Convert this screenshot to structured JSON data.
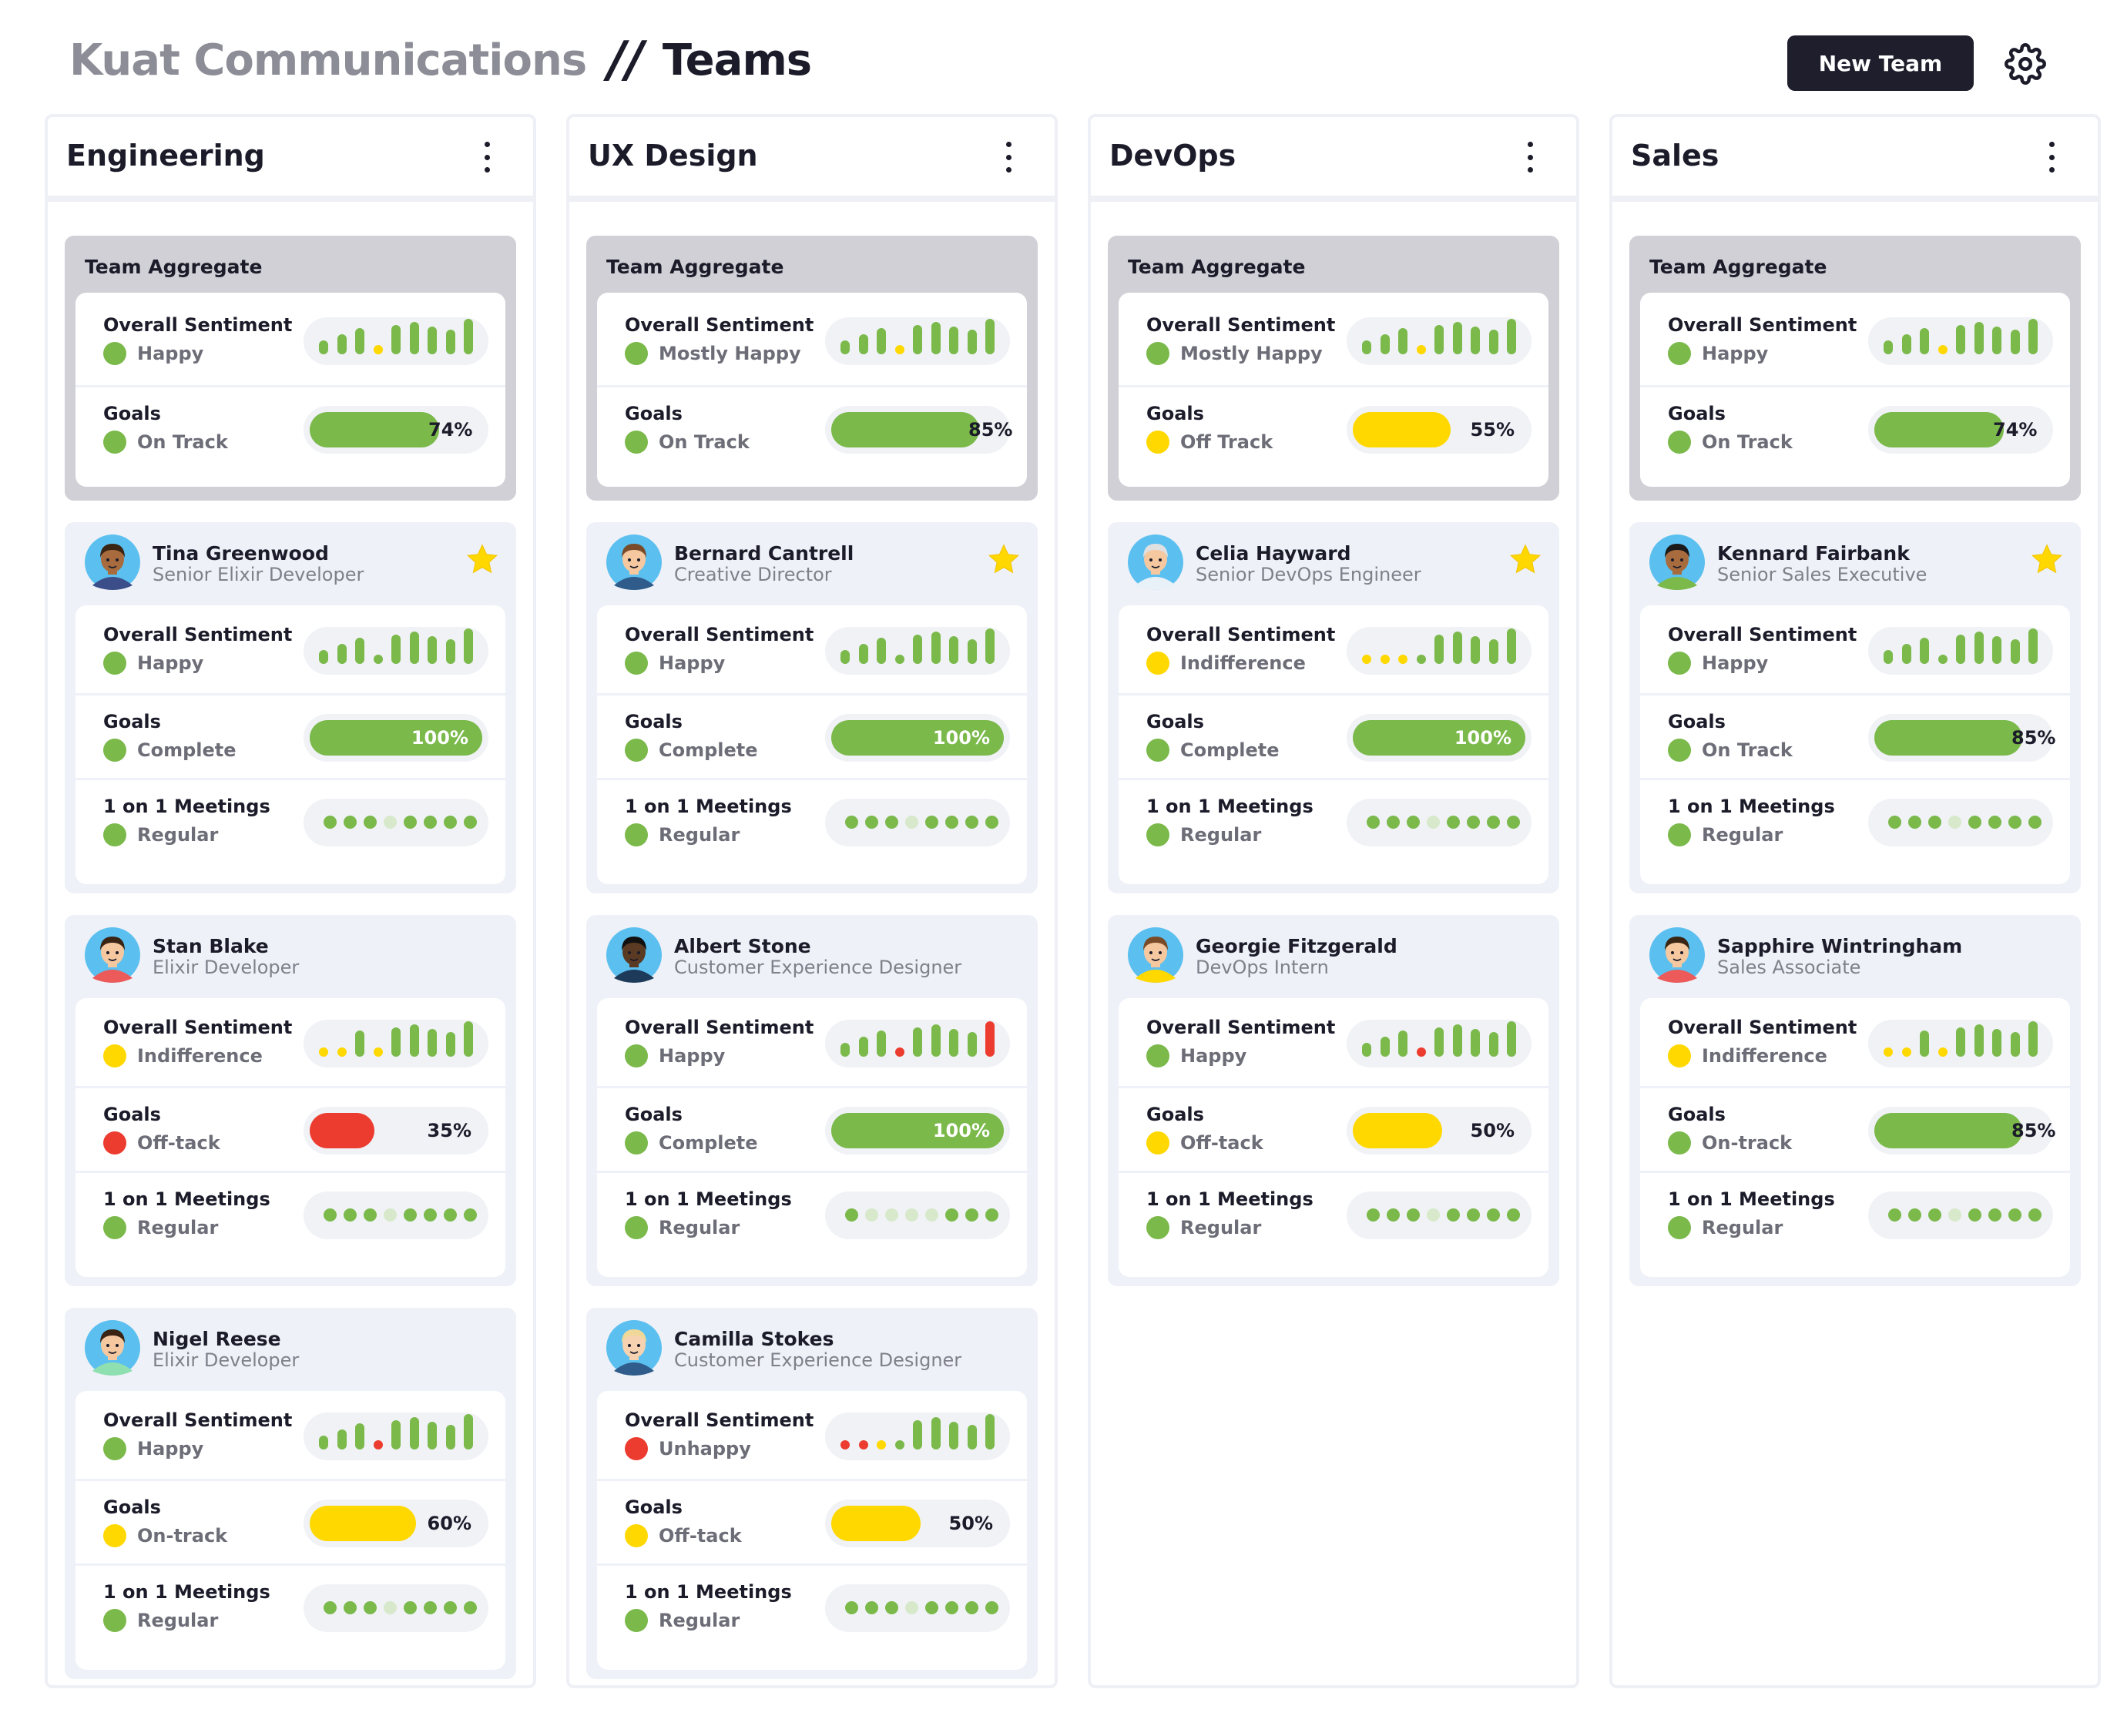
{
  "header": {
    "brand": "Kuat Communications",
    "separator": "//",
    "title": "Teams",
    "new_team_label": "New Team",
    "settings_icon": "gear-icon"
  },
  "colors": {
    "green": "#7ab94a",
    "yellow": "#ffd800",
    "red": "#ec3c2f",
    "light": "#d7e9ca",
    "dark": "#1e1e2c"
  },
  "labels": {
    "team_aggregate": "Team Aggregate",
    "sentiment": "Overall Sentiment",
    "goals": "Goals",
    "meetings": "1 on 1 Meetings"
  },
  "teams": [
    {
      "name": "Engineering",
      "aggregate": {
        "sentiment": {
          "status": "Happy",
          "color": "green",
          "bars": [
            "g",
            "g",
            "g",
            "y",
            "g",
            "g",
            "g",
            "g",
            "g"
          ]
        },
        "goals": {
          "status": "On Track",
          "color": "green",
          "percent": 74,
          "label": "74%"
        }
      },
      "members": [
        {
          "name": "Tina Greenwood",
          "role": "Senior Elixir Developer",
          "starred": true,
          "avatar": {
            "skin": "#a86b3d",
            "hair": "#3a2414",
            "shirt": "#3b4e8a",
            "bg": "#5bc0f0"
          },
          "sentiment": {
            "status": "Happy",
            "color": "green",
            "bars": [
              "g",
              "g",
              "g",
              "g",
              "g",
              "g",
              "g",
              "g",
              "g"
            ]
          },
          "goals": {
            "status": "Complete",
            "color": "green",
            "percent": 100,
            "label": "100%"
          },
          "meetings": {
            "status": "Regular",
            "color": "green",
            "dots": [
              "g",
              "g",
              "g",
              "l",
              "g",
              "g",
              "g",
              "g"
            ]
          }
        },
        {
          "name": "Stan Blake",
          "role": "Elixir Developer",
          "starred": false,
          "avatar": {
            "skin": "#f6c8a0",
            "hair": "#3a2414",
            "shirt": "#ec5a5a",
            "bg": "#5bc0f0"
          },
          "sentiment": {
            "status": "Indifference",
            "color": "yellow",
            "bars": [
              "y",
              "y",
              "g",
              "y",
              "g",
              "g",
              "g",
              "g",
              "g"
            ]
          },
          "goals": {
            "status": "Off-tack",
            "color": "red",
            "percent": 35,
            "label": "35%"
          },
          "meetings": {
            "status": "Regular",
            "color": "green",
            "dots": [
              "g",
              "g",
              "g",
              "l",
              "g",
              "g",
              "g",
              "g"
            ]
          }
        },
        {
          "name": "Nigel Reese",
          "role": "Elixir Developer",
          "starred": false,
          "avatar": {
            "skin": "#f6c8a0",
            "hair": "#3a2414",
            "shirt": "#8fe0b0",
            "bg": "#5bc0f0"
          },
          "sentiment": {
            "status": "Happy",
            "color": "green",
            "bars": [
              "g",
              "g",
              "g",
              "r",
              "g",
              "g",
              "g",
              "g",
              "g"
            ]
          },
          "goals": {
            "status": "On-track",
            "color": "yellow",
            "percent": 60,
            "label": "60%"
          },
          "meetings": {
            "status": "Regular",
            "color": "green",
            "dots": [
              "g",
              "g",
              "g",
              "l",
              "g",
              "g",
              "g",
              "g"
            ]
          }
        }
      ]
    },
    {
      "name": "UX Design",
      "aggregate": {
        "sentiment": {
          "status": "Mostly Happy",
          "color": "green",
          "bars": [
            "g",
            "g",
            "g",
            "y",
            "g",
            "g",
            "g",
            "g",
            "g"
          ]
        },
        "goals": {
          "status": "On Track",
          "color": "green",
          "percent": 85,
          "label": "85%"
        }
      },
      "members": [
        {
          "name": "Bernard Cantrell",
          "role": "Creative Director",
          "starred": true,
          "avatar": {
            "skin": "#f6c8a0",
            "hair": "#7a4b28",
            "shirt": "#2f5c8a",
            "bg": "#5bc0f0"
          },
          "sentiment": {
            "status": "Happy",
            "color": "green",
            "bars": [
              "g",
              "g",
              "g",
              "g",
              "g",
              "g",
              "g",
              "g",
              "g"
            ]
          },
          "goals": {
            "status": "Complete",
            "color": "green",
            "percent": 100,
            "label": "100%"
          },
          "meetings": {
            "status": "Regular",
            "color": "green",
            "dots": [
              "g",
              "g",
              "g",
              "l",
              "g",
              "g",
              "g",
              "g"
            ]
          }
        },
        {
          "name": "Albert Stone",
          "role": "Customer Experience Designer",
          "starred": false,
          "avatar": {
            "skin": "#5a3a22",
            "hair": "#111111",
            "shirt": "#1e3a5a",
            "bg": "#5bc0f0"
          },
          "sentiment": {
            "status": "Happy",
            "color": "green",
            "bars": [
              "g",
              "g",
              "g",
              "r",
              "g",
              "g",
              "g",
              "g",
              "r"
            ]
          },
          "goals": {
            "status": "Complete",
            "color": "green",
            "percent": 100,
            "label": "100%"
          },
          "meetings": {
            "status": "Regular",
            "color": "green",
            "dots": [
              "g",
              "l",
              "l",
              "l",
              "l",
              "g",
              "g",
              "g"
            ]
          }
        },
        {
          "name": "Camilla Stokes",
          "role": "Customer Experience Designer",
          "starred": false,
          "avatar": {
            "skin": "#f6d2b0",
            "hair": "#f0d898",
            "shirt": "#2f5c8a",
            "bg": "#5bc0f0"
          },
          "sentiment": {
            "status": "Unhappy",
            "color": "red",
            "bars": [
              "r",
              "r",
              "y",
              "g",
              "g",
              "g",
              "g",
              "g",
              "g"
            ]
          },
          "goals": {
            "status": "Off-tack",
            "color": "yellow",
            "percent": 50,
            "label": "50%"
          },
          "meetings": {
            "status": "Regular",
            "color": "green",
            "dots": [
              "g",
              "g",
              "g",
              "l",
              "g",
              "g",
              "g",
              "g"
            ]
          }
        }
      ]
    },
    {
      "name": "DevOps",
      "aggregate": {
        "sentiment": {
          "status": "Mostly Happy",
          "color": "green",
          "bars": [
            "g",
            "g",
            "g",
            "y",
            "g",
            "g",
            "g",
            "g",
            "g"
          ]
        },
        "goals": {
          "status": "Off Track",
          "color": "yellow",
          "percent": 55,
          "label": "55%"
        }
      },
      "members": [
        {
          "name": "Celia Hayward",
          "role": "Senior DevOps Engineer",
          "starred": true,
          "avatar": {
            "skin": "#f6c8a0",
            "hair": "#e0e0e0",
            "shirt": "#e8f0f8",
            "bg": "#5bc0f0"
          },
          "sentiment": {
            "status": "Indifference",
            "color": "yellow",
            "bars": [
              "y",
              "y",
              "y",
              "g",
              "g",
              "g",
              "g",
              "g",
              "g"
            ]
          },
          "goals": {
            "status": "Complete",
            "color": "green",
            "percent": 100,
            "label": "100%"
          },
          "meetings": {
            "status": "Regular",
            "color": "green",
            "dots": [
              "g",
              "g",
              "g",
              "l",
              "g",
              "g",
              "g",
              "g"
            ]
          }
        },
        {
          "name": "Georgie Fitzgerald",
          "role": "DevOps Intern",
          "starred": false,
          "avatar": {
            "skin": "#f6c8a0",
            "hair": "#7a4b28",
            "shirt": "#ffd800",
            "bg": "#5bc0f0"
          },
          "sentiment": {
            "status": "Happy",
            "color": "green",
            "bars": [
              "g",
              "g",
              "g",
              "r",
              "g",
              "g",
              "g",
              "g",
              "g"
            ]
          },
          "goals": {
            "status": "Off-tack",
            "color": "yellow",
            "percent": 50,
            "label": "50%"
          },
          "meetings": {
            "status": "Regular",
            "color": "green",
            "dots": [
              "g",
              "g",
              "g",
              "l",
              "g",
              "g",
              "g",
              "g"
            ]
          }
        }
      ]
    },
    {
      "name": "Sales",
      "aggregate": {
        "sentiment": {
          "status": "Happy",
          "color": "green",
          "bars": [
            "g",
            "g",
            "g",
            "y",
            "g",
            "g",
            "g",
            "g",
            "g"
          ]
        },
        "goals": {
          "status": "On Track",
          "color": "green",
          "percent": 74,
          "label": "74%"
        }
      },
      "members": [
        {
          "name": "Kennard Fairbank",
          "role": "Senior Sales Executive",
          "starred": true,
          "avatar": {
            "skin": "#a86b3d",
            "hair": "#1a1a1a",
            "shirt": "#7ab94a",
            "bg": "#5bc0f0"
          },
          "sentiment": {
            "status": "Happy",
            "color": "green",
            "bars": [
              "g",
              "g",
              "g",
              "g",
              "g",
              "g",
              "g",
              "g",
              "g"
            ]
          },
          "goals": {
            "status": "On Track",
            "color": "green",
            "percent": 85,
            "label": "85%"
          },
          "meetings": {
            "status": "Regular",
            "color": "green",
            "dots": [
              "g",
              "g",
              "g",
              "l",
              "g",
              "g",
              "g",
              "g"
            ]
          }
        },
        {
          "name": "Sapphire Wintringham",
          "role": "Sales Associate",
          "starred": false,
          "avatar": {
            "skin": "#f6c8a0",
            "hair": "#3a2414",
            "shirt": "#ec5a5a",
            "bg": "#5bc0f0"
          },
          "sentiment": {
            "status": "Indifference",
            "color": "yellow",
            "bars": [
              "y",
              "y",
              "g",
              "y",
              "g",
              "g",
              "g",
              "g",
              "g"
            ]
          },
          "goals": {
            "status": "On-track",
            "color": "green",
            "percent": 85,
            "label": "85%"
          },
          "meetings": {
            "status": "Regular",
            "color": "green",
            "dots": [
              "g",
              "g",
              "g",
              "l",
              "g",
              "g",
              "g",
              "g"
            ]
          }
        }
      ]
    }
  ]
}
